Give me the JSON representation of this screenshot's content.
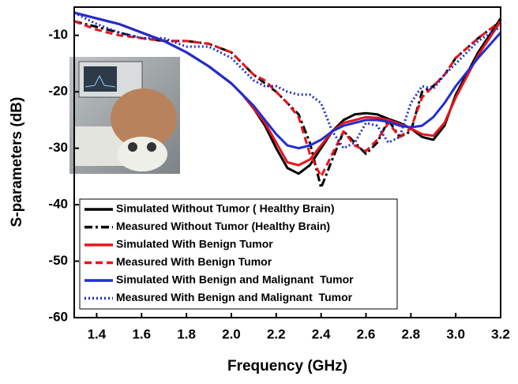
{
  "chart_data": {
    "type": "line",
    "xlabel": "Frequency (GHz)",
    "ylabel": "S-parameters (dB)",
    "xlim": [
      1.3,
      3.2
    ],
    "ylim": [
      -60,
      -5
    ],
    "xticks": [
      1.4,
      1.6,
      1.8,
      {
        "value": 2,
        "label": "2.0"
      },
      2.2,
      2.4,
      2.6,
      2.8,
      {
        "value": 3,
        "label": "3.0"
      },
      3.2
    ],
    "yticks": [
      -10,
      -20,
      -30,
      -40,
      -50,
      -60
    ],
    "legend": "lower-left",
    "x": [
      1.3,
      1.4,
      1.5,
      1.6,
      1.7,
      1.8,
      1.9,
      2.0,
      2.05,
      2.1,
      2.15,
      2.2,
      2.25,
      2.3,
      2.35,
      2.4,
      2.45,
      2.5,
      2.55,
      2.6,
      2.65,
      2.7,
      2.75,
      2.8,
      2.85,
      2.9,
      2.95,
      3.0,
      3.1,
      3.2
    ],
    "series": [
      {
        "name": "Simulated Without Tumor ( Healthy Brain)",
        "color": "#000000",
        "dash": "solid",
        "values": [
          -6,
          -7,
          -8,
          -9.5,
          -11,
          -13,
          -15.5,
          -18.5,
          -20.5,
          -23,
          -26,
          -30,
          -33.5,
          -34.5,
          -33,
          -30,
          -27,
          -25,
          -24,
          -23.8,
          -24,
          -24.8,
          -25.5,
          -26.5,
          -28,
          -28.5,
          -26,
          -20.5,
          -13,
          -7
        ]
      },
      {
        "name": "Measured Without Tumor (Healthy Brain)",
        "color": "#000000",
        "dash": "dashdot",
        "values": [
          -7.5,
          -8.5,
          -9.5,
          -10.5,
          -11,
          -11,
          -11.5,
          -13,
          -15,
          -17,
          -18.5,
          -20,
          -22,
          -24,
          -29,
          -37,
          -32,
          -27,
          -29,
          -31,
          -29,
          -25,
          -28,
          -27,
          -20,
          -19,
          -17,
          -14,
          -10.5,
          -7.5
        ]
      },
      {
        "name": "Simulated With Benign Tumor",
        "color": "#e8141b",
        "dash": "solid",
        "values": [
          -6,
          -7,
          -8,
          -9.5,
          -11,
          -13,
          -15.5,
          -18.5,
          -20.5,
          -23,
          -25.5,
          -29,
          -32.5,
          -33,
          -32,
          -29.5,
          -27,
          -25.5,
          -25,
          -24.5,
          -24.6,
          -25,
          -25.7,
          -26.5,
          -27.5,
          -27.8,
          -25.5,
          -21,
          -13.5,
          -7.5
        ]
      },
      {
        "name": "Measured With Benign Tumor",
        "color": "#e8141b",
        "dash": "dashed",
        "values": [
          -7.5,
          -9,
          -10,
          -10.5,
          -11,
          -11,
          -11.5,
          -13,
          -15,
          -17,
          -18,
          -20,
          -22,
          -24.5,
          -31,
          -35,
          -31,
          -27,
          -29.5,
          -30.5,
          -28.5,
          -25.5,
          -28,
          -26.5,
          -21,
          -19,
          -17,
          -14,
          -10.5,
          -7.5
        ]
      },
      {
        "name": "Simulated With Benign and Malignant  Tumor",
        "color": "#1f2fd0",
        "dash": "solid",
        "values": [
          -6,
          -7,
          -8,
          -9.5,
          -11,
          -13,
          -15.5,
          -18.5,
          -20.5,
          -22.5,
          -25,
          -27.5,
          -29.5,
          -30,
          -29.5,
          -28.5,
          -27,
          -26,
          -25.5,
          -25,
          -25,
          -25.3,
          -26,
          -26.3,
          -26,
          -24.5,
          -22,
          -19,
          -14,
          -9.5
        ]
      },
      {
        "name": "Measured With Benign and Malignant  Tumor",
        "color": "#1f2fd0",
        "dash": "dotted",
        "values": [
          -6,
          -8,
          -9.5,
          -10.5,
          -10.5,
          -12,
          -12,
          -14,
          -16,
          -18,
          -19,
          -19,
          -20,
          -20.5,
          -20.5,
          -22,
          -27,
          -30,
          -29,
          -25.5,
          -26,
          -29,
          -28,
          -22,
          -19,
          -19.5,
          -17,
          -15,
          -11,
          -8.5
        ]
      }
    ]
  }
}
